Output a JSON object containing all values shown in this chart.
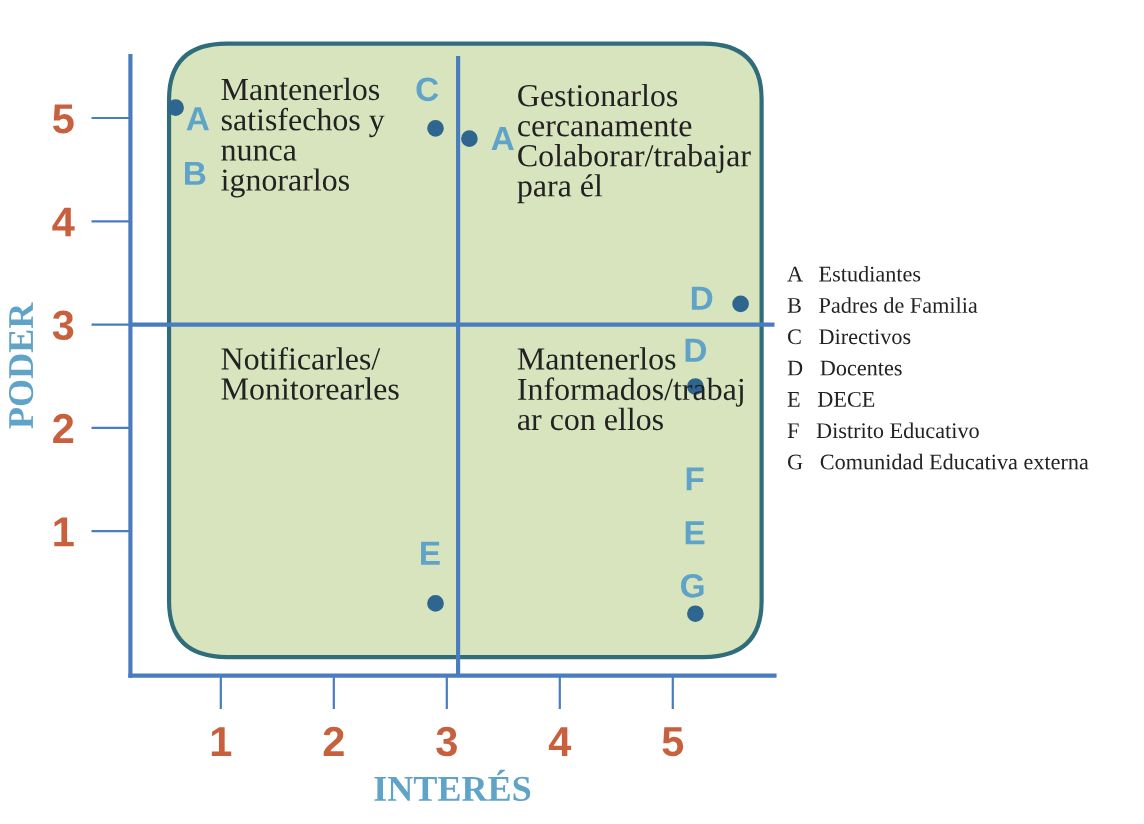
{
  "chart_data": {
    "type": "scatter",
    "xlabel": "INTERÉS",
    "ylabel": "PODER",
    "xlim": [
      0.2,
      5.9
    ],
    "ylim": [
      -0.4,
      5.6
    ],
    "xticks": [
      1,
      2,
      3,
      4,
      5
    ],
    "yticks": [
      1,
      2,
      3,
      4,
      5
    ],
    "grid": false,
    "series": [
      {
        "color": "#2f6690",
        "marker": "circle",
        "x": [
          0.6,
          2.9,
          3.2,
          5.6,
          5.2,
          2.9,
          5.2
        ],
        "values": [
          5.1,
          4.9,
          4.8,
          3.2,
          2.4,
          0.3,
          0.2
        ],
        "value_labels": [
          "A",
          "C",
          "A",
          "D",
          "D",
          "E",
          "G"
        ]
      }
    ],
    "ref_lines": [
      {
        "axis": "x",
        "value": 3.1,
        "color": "#4a7cc0"
      },
      {
        "axis": "y",
        "value": 3.0,
        "color": "#4a7cc0"
      }
    ],
    "annotations": [
      "Mantenerlos\nsatisfechos y\nnunca\nignorarlos",
      "Gestionarlos\ncercanamente\nColaborar/trabajar\npara él",
      "Notificarles/\nMonitorearles",
      "Mantenerlos\nInformados/trabaj\nar con ellos",
      "B",
      "F",
      "E",
      "A   Estudiantes",
      "B   Padres de Familia",
      "C   Directivos",
      "D   Docentes",
      "E   DECE",
      "F   Distrito Educativo",
      "G   Comunidad Educativa externa"
    ]
  }
}
